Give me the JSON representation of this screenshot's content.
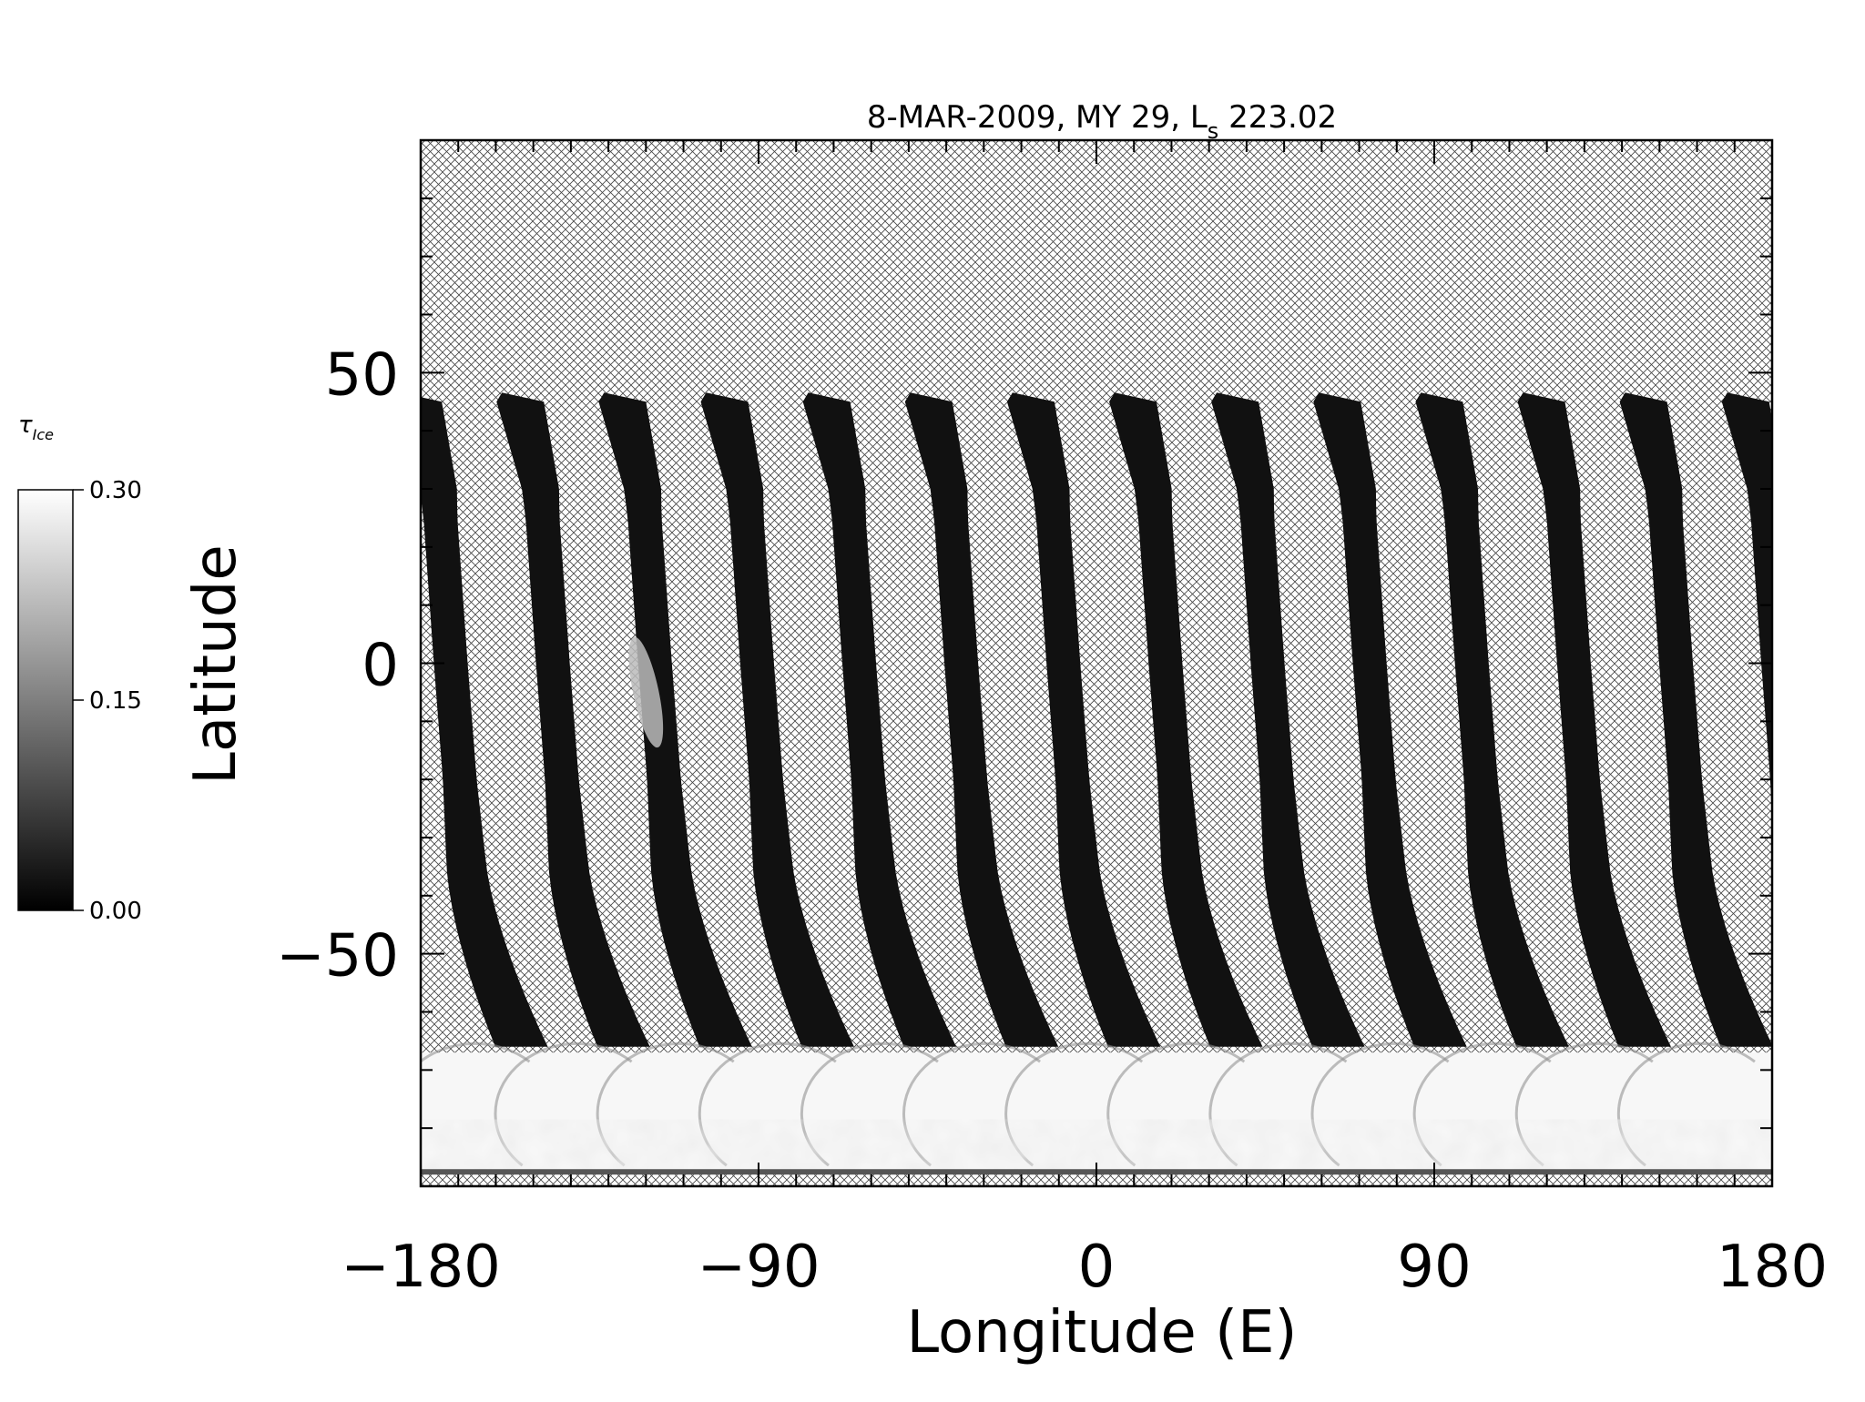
{
  "chart_data": {
    "type": "heatmap",
    "title": "8-MAR-2009, MY 29,  L",
    "title_subscript": "s",
    "title_suffix": " 223.02",
    "xlabel": "Longitude (E)",
    "ylabel": "Latitude",
    "xlim": [
      -180,
      180
    ],
    "ylim": [
      -90,
      90
    ],
    "x_ticks": [
      -180,
      -90,
      0,
      90,
      180
    ],
    "x_tick_labels": [
      "−180",
      "−90",
      "0",
      "90",
      "180"
    ],
    "y_ticks": [
      -50,
      0,
      50
    ],
    "y_tick_labels": [
      "−50",
      "0",
      "50"
    ],
    "no_data_pattern": "crosshatch",
    "colorbar": {
      "label": "τ",
      "label_subscript": "Ice",
      "min": 0.0,
      "max": 0.3,
      "tick_values": [
        0.0,
        0.15,
        0.3
      ],
      "tick_labels": [
        "0.00",
        "0.15",
        "0.30"
      ],
      "colormap": "grayscale"
    },
    "orbit_swaths": {
      "count": 14,
      "first_equator_lon": -172,
      "spacing_deg": 27.2,
      "top_latitude": 45,
      "bottom_latitude": -66,
      "swath_width_deg": 9,
      "typical_value": 0.02
    },
    "polar_cap": {
      "lat_range": [
        -88,
        -67
      ],
      "value": 0.29
    },
    "features": [
      {
        "name": "bright-cloud-patch",
        "lon": -120,
        "lat": -5,
        "value": 0.22
      }
    ]
  }
}
